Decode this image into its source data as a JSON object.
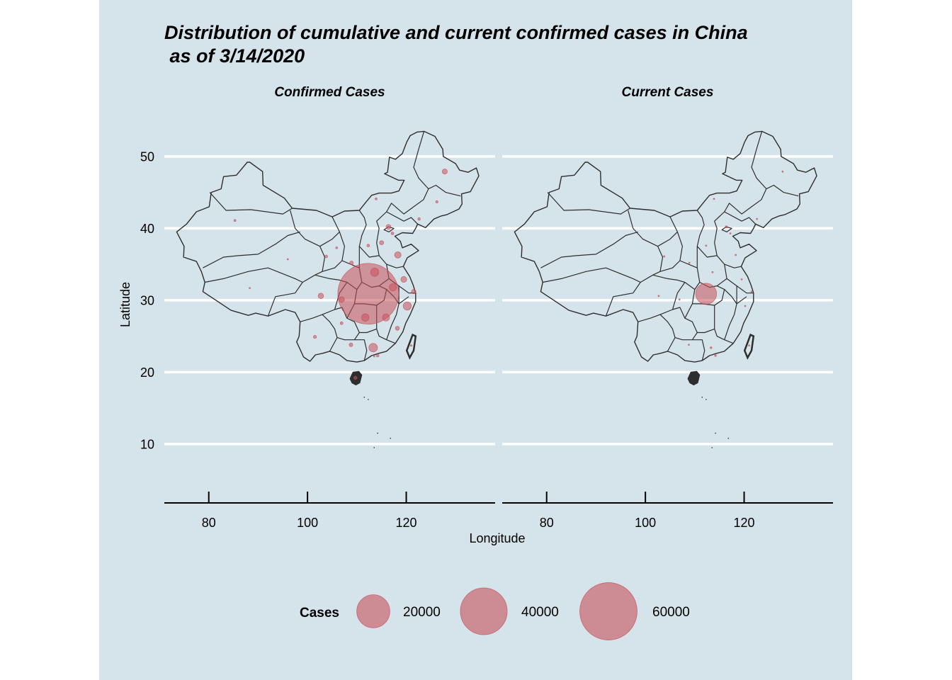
{
  "title_line1": "Distribution of cumulative and current confirmed cases in China",
  "title_line2": " as of 3/14/2020",
  "xlabel": "Longitude",
  "ylabel": "Latitude",
  "colors": {
    "panel_bg": "#d5e3ea",
    "gridline": "#ffffff",
    "outline": "#2e2e2e",
    "bubble": "#c8505a"
  },
  "chart_data": {
    "type": "scatter",
    "encoding": "bubble map; bubble area proportional to case count",
    "x_ticks": [
      80,
      100,
      120
    ],
    "y_ticks": [
      10,
      20,
      30,
      40,
      50
    ],
    "xlim": [
      71,
      138
    ],
    "ylim": [
      2,
      56
    ],
    "legend": {
      "title": "Cases",
      "position": "bottom",
      "breaks": [
        20000,
        40000,
        60000
      ],
      "labels": [
        "20000",
        "40000",
        "60000"
      ]
    },
    "panels": [
      {
        "name": "Confirmed Cases",
        "points": [
          {
            "lon": 112.3,
            "lat": 30.9,
            "cases": 67790
          },
          {
            "lon": 113.6,
            "lat": 33.9,
            "cases": 1273
          },
          {
            "lon": 113.3,
            "lat": 23.4,
            "cases": 1356
          },
          {
            "lon": 120.2,
            "lat": 29.2,
            "cases": 1215
          },
          {
            "lon": 117.3,
            "lat": 31.8,
            "cases": 990
          },
          {
            "lon": 111.7,
            "lat": 27.6,
            "cases": 1018
          },
          {
            "lon": 115.9,
            "lat": 27.6,
            "cases": 935
          },
          {
            "lon": 118.3,
            "lat": 36.3,
            "cases": 760
          },
          {
            "lon": 119.5,
            "lat": 32.9,
            "cases": 631
          },
          {
            "lon": 102.7,
            "lat": 30.6,
            "cases": 539
          },
          {
            "lon": 127.8,
            "lat": 47.9,
            "cases": 482
          },
          {
            "lon": 116.4,
            "lat": 40.2,
            "cases": 437
          },
          {
            "lon": 121.5,
            "lat": 31.2,
            "cases": 353
          },
          {
            "lon": 117.2,
            "lat": 39.3,
            "cases": 136
          },
          {
            "lon": 115.0,
            "lat": 38.0,
            "cases": 318
          },
          {
            "lon": 108.9,
            "lat": 35.2,
            "cases": 245
          },
          {
            "lon": 108.8,
            "lat": 23.8,
            "cases": 252
          },
          {
            "lon": 106.9,
            "lat": 30.1,
            "cases": 576
          },
          {
            "lon": 118.2,
            "lat": 26.1,
            "cases": 296
          },
          {
            "lon": 101.5,
            "lat": 24.9,
            "cases": 174
          },
          {
            "lon": 109.7,
            "lat": 19.2,
            "cases": 168
          },
          {
            "lon": 106.9,
            "lat": 26.8,
            "cases": 146
          },
          {
            "lon": 112.3,
            "lat": 37.6,
            "cases": 133
          },
          {
            "lon": 122.6,
            "lat": 41.3,
            "cases": 125
          },
          {
            "lon": 126.2,
            "lat": 43.7,
            "cases": 93
          },
          {
            "lon": 85.3,
            "lat": 41.1,
            "cases": 76
          },
          {
            "lon": 113.9,
            "lat": 44.1,
            "cases": 75
          },
          {
            "lon": 105.9,
            "lat": 37.3,
            "cases": 75
          },
          {
            "lon": 103.8,
            "lat": 36.1,
            "cases": 134
          },
          {
            "lon": 96.0,
            "lat": 35.7,
            "cases": 18
          },
          {
            "lon": 88.3,
            "lat": 31.7,
            "cases": 1
          },
          {
            "lon": 114.2,
            "lat": 22.3,
            "cases": 141
          },
          {
            "lon": 121.0,
            "lat": 23.7,
            "cases": 50
          },
          {
            "lon": 113.5,
            "lat": 22.2,
            "cases": 10
          }
        ]
      },
      {
        "name": "Current Cases",
        "points": [
          {
            "lon": 112.3,
            "lat": 30.9,
            "cases": 8000
          },
          {
            "lon": 113.3,
            "lat": 23.4,
            "cases": 60
          },
          {
            "lon": 120.2,
            "lat": 29.2,
            "cases": 15
          },
          {
            "lon": 116.4,
            "lat": 40.2,
            "cases": 90
          },
          {
            "lon": 121.5,
            "lat": 31.2,
            "cases": 30
          },
          {
            "lon": 118.3,
            "lat": 36.3,
            "cases": 20
          },
          {
            "lon": 117.2,
            "lat": 39.3,
            "cases": 10
          },
          {
            "lon": 114.2,
            "lat": 22.3,
            "cases": 60
          },
          {
            "lon": 121.0,
            "lat": 23.7,
            "cases": 20
          },
          {
            "lon": 103.8,
            "lat": 36.1,
            "cases": 15
          },
          {
            "lon": 127.8,
            "lat": 47.9,
            "cases": 5
          },
          {
            "lon": 102.7,
            "lat": 30.6,
            "cases": 10
          },
          {
            "lon": 113.6,
            "lat": 33.9,
            "cases": 3
          },
          {
            "lon": 119.5,
            "lat": 32.9,
            "cases": 3
          },
          {
            "lon": 108.8,
            "lat": 23.8,
            "cases": 5
          },
          {
            "lon": 106.9,
            "lat": 30.1,
            "cases": 5
          },
          {
            "lon": 108.9,
            "lat": 35.2,
            "cases": 5
          },
          {
            "lon": 112.3,
            "lat": 37.6,
            "cases": 2
          },
          {
            "lon": 113.9,
            "lat": 44.1,
            "cases": 2
          },
          {
            "lon": 122.6,
            "lat": 41.3,
            "cases": 3
          }
        ]
      }
    ]
  }
}
